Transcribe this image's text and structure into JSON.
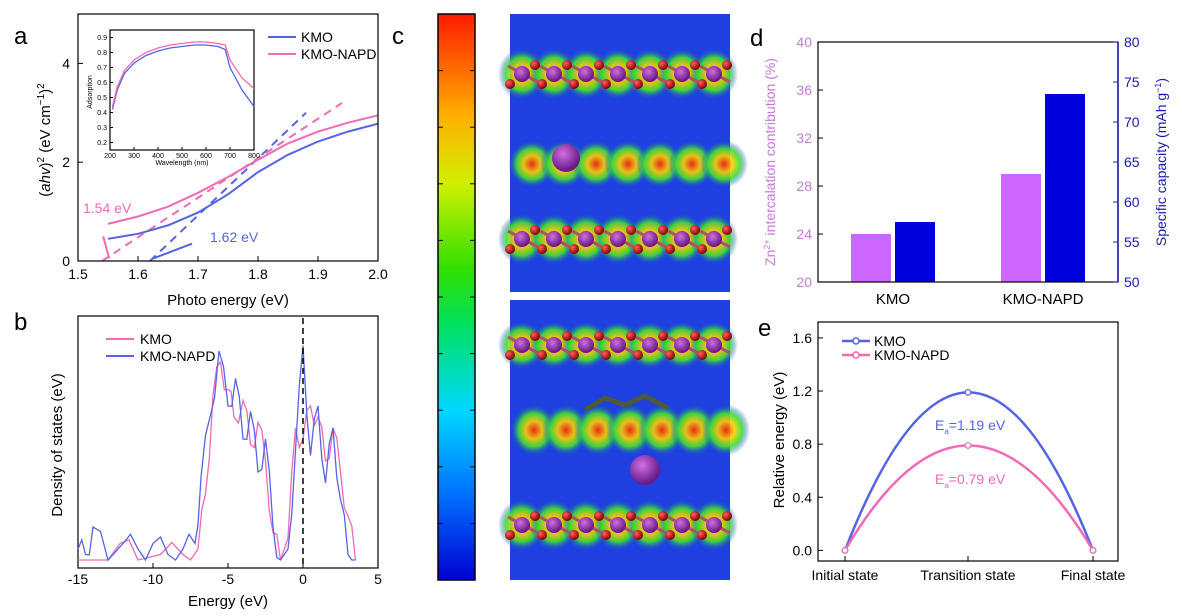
{
  "colors": {
    "kmo_blue": "#5563e6",
    "kmo_napd_pink": "#f06ab4",
    "violet_bar": "#cc66ff",
    "blue_bar": "#0000dd",
    "right_axis": "#1a1ab0",
    "left_axis_d": "#c77ad8"
  },
  "chart_data": [
    {
      "panel": "a",
      "type": "line",
      "xlabel": "Photo energy (eV)",
      "ylabel": "(ahv)² (eV cm⁻¹)²",
      "xlim": [
        1.5,
        2.0
      ],
      "ylim": [
        0,
        5
      ],
      "xticks": [
        "1.5",
        "1.6",
        "1.7",
        "1.8",
        "1.9",
        "2.0"
      ],
      "yticks": [
        "0",
        "2",
        "4"
      ],
      "series": [
        {
          "name": "KMO",
          "x": [
            1.55,
            1.6,
            1.65,
            1.7,
            1.75,
            1.8,
            1.85,
            1.9,
            1.95,
            2.0
          ],
          "y": [
            0.45,
            0.55,
            0.72,
            0.98,
            1.35,
            1.8,
            2.15,
            2.42,
            2.62,
            2.78
          ]
        },
        {
          "name": "KMO-NAPD",
          "x": [
            1.55,
            1.6,
            1.65,
            1.7,
            1.75,
            1.8,
            1.85,
            1.9,
            1.95,
            2.0
          ],
          "y": [
            0.75,
            0.9,
            1.1,
            1.38,
            1.7,
            2.05,
            2.38,
            2.62,
            2.8,
            2.95
          ]
        }
      ],
      "fits": [
        {
          "name": "KMO fit",
          "x": [
            1.62,
            1.88
          ],
          "y": [
            0,
            3.0
          ]
        },
        {
          "name": "KMO-NAPD fit",
          "x": [
            1.54,
            1.94
          ],
          "y": [
            0,
            3.2
          ]
        }
      ],
      "annotations": [
        "1.54 eV",
        "1.62 eV"
      ],
      "inset": {
        "xlabel": "Wavelength (nm)",
        "ylabel": "Adsorption",
        "xticks": [
          "200",
          "300",
          "400",
          "500",
          "600",
          "700",
          "800"
        ],
        "yticks": [
          "0.2",
          "0.3",
          "0.4",
          "0.5",
          "0.6",
          "0.7",
          "0.8",
          "0.9"
        ],
        "xlim": [
          200,
          800
        ],
        "ylim": [
          0.15,
          0.95
        ],
        "series": [
          {
            "name": "KMO",
            "x": [
              210,
              230,
              260,
              300,
              350,
              400,
              450,
              500,
              550,
              600,
              650,
              680,
              700,
              750,
              800
            ],
            "y": [
              0.42,
              0.55,
              0.66,
              0.73,
              0.78,
              0.81,
              0.83,
              0.84,
              0.85,
              0.85,
              0.84,
              0.82,
              0.7,
              0.55,
              0.44
            ]
          },
          {
            "name": "KMO-NAPD",
            "x": [
              210,
              230,
              260,
              300,
              350,
              400,
              450,
              500,
              550,
              600,
              650,
              680,
              700,
              750,
              800
            ],
            "y": [
              0.44,
              0.57,
              0.68,
              0.75,
              0.8,
              0.83,
              0.85,
              0.86,
              0.87,
              0.87,
              0.86,
              0.85,
              0.75,
              0.63,
              0.56
            ]
          }
        ]
      }
    },
    {
      "panel": "b",
      "type": "line",
      "xlabel": "Energy (eV)",
      "ylabel": "Density of states (eV)",
      "xlim": [
        -15,
        5
      ],
      "xticks": [
        "-15",
        "-10",
        "-5",
        "0",
        "5"
      ],
      "fermi_level": 0,
      "series": [
        {
          "name": "KMO",
          "x": [
            -15,
            -13,
            -12.2,
            -11,
            -9.5,
            -8,
            -7,
            -6.5,
            -6,
            -5.5,
            -5,
            -4.6,
            -4,
            -3.5,
            -3,
            -2.5,
            -2,
            -1.5,
            -1,
            -0.5,
            0,
            0.5,
            1,
            1.5,
            2,
            2.5,
            3,
            3.5
          ],
          "y": [
            0,
            0,
            0.3,
            0,
            0.1,
            0.1,
            0.2,
            1.2,
            3.0,
            3.6,
            3.1,
            2.6,
            2.9,
            2.1,
            2.5,
            1.8,
            0.5,
            0,
            0.4,
            2.4,
            2.2,
            2.8,
            2.6,
            1.8,
            2.4,
            1.6,
            0.8,
            0
          ]
        },
        {
          "name": "KMO-NAPD",
          "x": [
            -15,
            -14.5,
            -14,
            -13,
            -12,
            -11,
            -10,
            -9,
            -8,
            -7.2,
            -6.8,
            -6.2,
            -5.6,
            -5,
            -4.5,
            -4,
            -3.5,
            -3,
            -2.5,
            -2,
            -1.5,
            -1,
            -0.5,
            0,
            0.5,
            1,
            1.5,
            2,
            2.5,
            3,
            3.5
          ],
          "y": [
            0.2,
            0.1,
            0.6,
            0,
            0.3,
            0.2,
            0.3,
            0.1,
            0.2,
            0.3,
            1.5,
            2.6,
            3.8,
            2.8,
            3.3,
            2.2,
            2.7,
            1.6,
            2.2,
            0.6,
            0,
            0.2,
            2.0,
            3.9,
            1.9,
            2.8,
            1.4,
            2.4,
            1.1,
            0.1,
            0
          ]
        }
      ]
    },
    {
      "panel": "d",
      "type": "bar",
      "categories": [
        "KMO",
        "KMO-NAPD"
      ],
      "left_axis": {
        "label": "Zn²⁺ intercalation contribution (%)",
        "ylim": [
          20,
          40
        ],
        "yticks": [
          "20",
          "24",
          "28",
          "32",
          "36",
          "40"
        ]
      },
      "right_axis": {
        "label": "Specific capacity (mAh g⁻¹)",
        "ylim": [
          50,
          80
        ],
        "yticks": [
          "50",
          "55",
          "60",
          "65",
          "70",
          "75",
          "80"
        ]
      },
      "series": [
        {
          "name": "Zn²⁺ intercalation contribution (%)",
          "axis": "left",
          "values": [
            24,
            29
          ]
        },
        {
          "name": "Specific capacity (mAh g⁻¹)",
          "axis": "right",
          "values": [
            57.5,
            73.5
          ]
        }
      ]
    },
    {
      "panel": "e",
      "type": "line",
      "categories": [
        "Initial state",
        "Transition state",
        "Final state"
      ],
      "ylabel": "Relative energy (eV)",
      "ylim": [
        -0.08,
        1.72
      ],
      "yticks": [
        "0.0",
        "0.4",
        "0.8",
        "1.2",
        "1.6"
      ],
      "series": [
        {
          "name": "KMO",
          "values": [
            0,
            1.19,
            0
          ],
          "annotation": "Ea=1.19 eV"
        },
        {
          "name": "KMO-NAPD",
          "values": [
            0,
            0.79,
            0
          ],
          "annotation": "Ea=0.79 eV"
        }
      ]
    }
  ],
  "labels": {
    "a": "a",
    "b": "b",
    "c": "c",
    "d": "d",
    "e": "e"
  },
  "panel_a": {
    "legend": [
      "KMO",
      "KMO-NAPD"
    ],
    "ann1": "1.54 eV",
    "ann2": "1.62 eV",
    "inset_x": "Wavelength (nm)",
    "inset_y": "Adsorption"
  },
  "panel_b": {
    "legend": [
      "KMO",
      "KMO-NAPD"
    ]
  },
  "panel_d": {
    "cat1": "KMO",
    "cat2": "KMO-NAPD"
  },
  "panel_e": {
    "legend": [
      "KMO",
      "KMO-NAPD"
    ],
    "ea1": "E",
    "ea1b": "a",
    "ea1c": "=1.19 eV",
    "ea2": "E",
    "ea2b": "a",
    "ea2c": "=0.79 eV"
  }
}
